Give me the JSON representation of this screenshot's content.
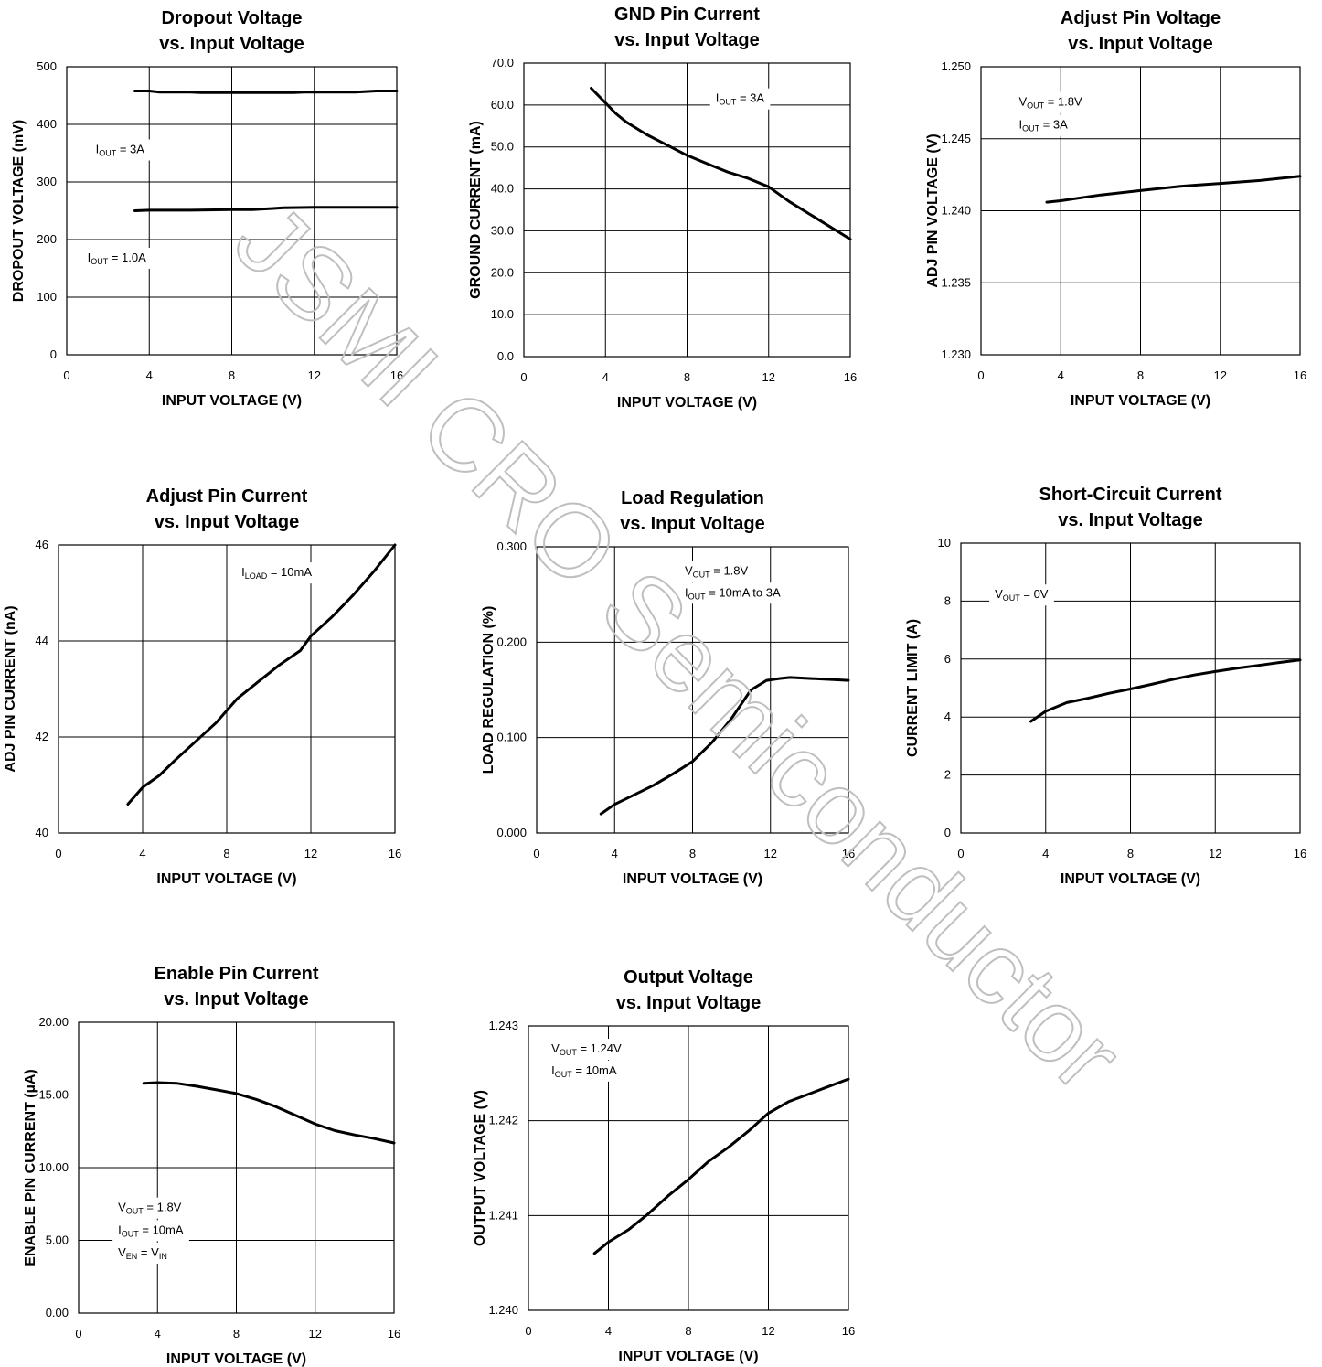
{
  "watermark": "JSMI CRO Semiconductor",
  "colors": {
    "line": "#000000",
    "grid": "#000000",
    "watermark": "#cccccc"
  },
  "chart_data": [
    {
      "type": "line",
      "title": [
        "Dropout Voltage",
        "vs. Input Voltage"
      ],
      "xlabel": "INPUT VOLTAGE (V)",
      "ylabel": "DROPOUT VOLTAGE (mV)",
      "xlim": [
        0,
        16
      ],
      "ylim": [
        0,
        500
      ],
      "xticks": [
        0,
        4,
        8,
        12,
        16
      ],
      "yticks": [
        0,
        100,
        200,
        300,
        400,
        500
      ],
      "ytick_labels": [
        "0",
        "100",
        "200",
        "300",
        "400",
        "500"
      ],
      "grid": true,
      "series": [
        {
          "x": [
            3.3,
            4,
            4.5,
            6,
            6.5,
            8,
            10,
            11,
            11.5,
            14,
            15,
            16
          ],
          "y": [
            458,
            458,
            456,
            456,
            455,
            455,
            455,
            455,
            456,
            456,
            458,
            458
          ]
        },
        {
          "x": [
            3.3,
            4,
            6,
            8,
            9,
            10,
            10.5,
            12,
            14,
            16
          ],
          "y": [
            250,
            251,
            251,
            252,
            252,
            254,
            255,
            256,
            256,
            256
          ]
        }
      ],
      "annotations": [
        {
          "main": "I",
          "sub": "OUT",
          "rest": " = 3A",
          "x": 1.4,
          "y": 350
        },
        {
          "main": "I",
          "sub": "OUT",
          "rest": " = 1.0A",
          "x": 1.0,
          "y": 162
        }
      ]
    },
    {
      "type": "line",
      "title": [
        "GND Pin Current",
        "vs. Input Voltage"
      ],
      "xlabel": "INPUT VOLTAGE (V)",
      "ylabel": "GROUND CURRENT (mA)",
      "xlim": [
        0,
        16
      ],
      "ylim": [
        0,
        70
      ],
      "xticks": [
        0,
        4,
        8,
        12,
        16
      ],
      "yticks": [
        0,
        10,
        20,
        30,
        40,
        50,
        60,
        70
      ],
      "ytick_labels": [
        "0.0",
        "10.0",
        "20.0",
        "30.0",
        "40.0",
        "50.0",
        "60.0",
        "70.0"
      ],
      "grid": true,
      "series": [
        {
          "x": [
            3.3,
            4,
            4.5,
            5,
            6,
            7,
            8,
            9,
            10,
            11,
            12,
            13,
            14,
            15,
            16
          ],
          "y": [
            64,
            60.5,
            58,
            56,
            53,
            50.5,
            48,
            46,
            44,
            42.5,
            40.5,
            37,
            34,
            31,
            28
          ]
        }
      ],
      "annotations": [
        {
          "main": "I",
          "sub": "OUT",
          "rest": " = 3A",
          "x": 9.4,
          "y": 60.7
        }
      ]
    },
    {
      "type": "line",
      "title": [
        "Adjust Pin Voltage",
        "vs. Input Voltage"
      ],
      "xlabel": "INPUT VOLTAGE (V)",
      "ylabel": "ADJ PIN VOLTAGE (V)",
      "xlim": [
        0,
        16
      ],
      "ylim": [
        1.23,
        1.25
      ],
      "xticks": [
        0,
        4,
        8,
        12,
        16
      ],
      "yticks": [
        1.23,
        1.235,
        1.24,
        1.245,
        1.25
      ],
      "ytick_labels": [
        "1.230",
        "1.235",
        "1.240",
        "1.245",
        "1.250"
      ],
      "grid": true,
      "series": [
        {
          "x": [
            3.3,
            4,
            5,
            6,
            8,
            10,
            11,
            12,
            13,
            14,
            16
          ],
          "y": [
            1.2406,
            1.2407,
            1.2409,
            1.2411,
            1.2414,
            1.2417,
            1.2418,
            1.2419,
            1.242,
            1.2421,
            1.2424
          ]
        }
      ],
      "annotations": [
        {
          "main": "V",
          "sub": "OUT",
          "rest": " = 1.8V",
          "x": 1.9,
          "y": 1.2473
        },
        {
          "main": "I",
          "sub": "OUT",
          "rest": " = 3A",
          "x": 1.9,
          "y": 1.2457
        }
      ]
    },
    {
      "type": "line",
      "title": [
        "Adjust Pin Current",
        "vs. Input Voltage"
      ],
      "xlabel": "INPUT VOLTAGE (V)",
      "ylabel": "ADJ PIN CURRENT (nA)",
      "xlim": [
        0,
        16
      ],
      "ylim": [
        40,
        46
      ],
      "xticks": [
        0,
        4,
        8,
        12,
        16
      ],
      "yticks": [
        40,
        42,
        44,
        46
      ],
      "ytick_labels": [
        "40",
        "42",
        "44",
        "46"
      ],
      "grid": true,
      "series": [
        {
          "x": [
            3.3,
            4,
            4.8,
            5.5,
            6.5,
            7.5,
            8.5,
            9.5,
            10.5,
            11.5,
            12,
            13,
            14,
            15,
            16
          ],
          "y": [
            40.6,
            40.95,
            41.2,
            41.5,
            41.9,
            42.3,
            42.8,
            43.15,
            43.5,
            43.8,
            44.1,
            44.5,
            44.95,
            45.45,
            46
          ]
        }
      ],
      "annotations": [
        {
          "main": "I",
          "sub": "LOAD",
          "rest": " = 10mA",
          "x": 8.7,
          "y": 45.35
        }
      ]
    },
    {
      "type": "line",
      "title": [
        "Load Regulation",
        "vs. Input Voltage"
      ],
      "xlabel": "INPUT VOLTAGE (V)",
      "ylabel": "LOAD REGULATION (%)",
      "xlim": [
        0,
        16
      ],
      "ylim": [
        0,
        0.3
      ],
      "xticks": [
        0,
        4,
        8,
        12,
        16
      ],
      "yticks": [
        0,
        0.1,
        0.2,
        0.3
      ],
      "ytick_labels": [
        "0.000",
        "0.100",
        "0.200",
        "0.300"
      ],
      "grid": true,
      "series": [
        {
          "x": [
            3.3,
            4,
            5,
            6,
            7,
            8,
            9,
            10,
            11,
            11.8,
            12.5,
            13,
            14,
            15,
            16
          ],
          "y": [
            0.02,
            0.03,
            0.04,
            0.05,
            0.062,
            0.075,
            0.095,
            0.12,
            0.15,
            0.16,
            0.162,
            0.163,
            0.162,
            0.161,
            0.16
          ]
        }
      ],
      "annotations": [
        {
          "main": "V",
          "sub": "OUT",
          "rest": " = 1.8V",
          "x": 7.6,
          "y": 0.271
        },
        {
          "main": "I",
          "sub": "OUT",
          "rest": " = 10mA to 3A",
          "x": 7.6,
          "y": 0.248
        }
      ]
    },
    {
      "type": "line",
      "title": [
        "Short-Circuit Current",
        "vs. Input Voltage"
      ],
      "xlabel": "INPUT VOLTAGE (V)",
      "ylabel": "CURRENT LIMIT (A)",
      "xlim": [
        0,
        16
      ],
      "ylim": [
        0,
        10
      ],
      "xticks": [
        0,
        4,
        8,
        12,
        16
      ],
      "yticks": [
        0,
        2,
        4,
        6,
        8,
        10
      ],
      "ytick_labels": [
        "0",
        "2",
        "4",
        "6",
        "8",
        "10"
      ],
      "grid": true,
      "series": [
        {
          "x": [
            3.3,
            4,
            5,
            6,
            7,
            8,
            9,
            10,
            11,
            12,
            13,
            14,
            15,
            16
          ],
          "y": [
            3.85,
            4.2,
            4.5,
            4.65,
            4.82,
            4.97,
            5.13,
            5.3,
            5.45,
            5.57,
            5.68,
            5.78,
            5.88,
            5.97
          ]
        }
      ],
      "annotations": [
        {
          "main": "V",
          "sub": "OUT",
          "rest": " = 0V",
          "x": 1.6,
          "y": 8.1
        }
      ]
    },
    {
      "type": "line",
      "title": [
        "Enable Pin Current",
        "vs. Input Voltage"
      ],
      "xlabel": "INPUT VOLTAGE (V)",
      "ylabel": "ENABLE PIN CURRENT (µA)",
      "xlim": [
        0,
        16
      ],
      "ylim": [
        0,
        20
      ],
      "xticks": [
        0,
        4,
        8,
        12,
        16
      ],
      "yticks": [
        0,
        5,
        10,
        15,
        20
      ],
      "ytick_labels": [
        "0.00",
        "5.00",
        "10.00",
        "15.00",
        "20.00"
      ],
      "grid": true,
      "series": [
        {
          "x": [
            3.3,
            4,
            5,
            6,
            7,
            8,
            9,
            10,
            11,
            12,
            13,
            14,
            15,
            16
          ],
          "y": [
            15.8,
            15.85,
            15.8,
            15.6,
            15.35,
            15.1,
            14.7,
            14.2,
            13.6,
            13.0,
            12.55,
            12.25,
            12.0,
            11.7
          ]
        }
      ],
      "annotations": [
        {
          "main": "V",
          "sub": "OUT",
          "rest": " = 1.8V",
          "x": 2.0,
          "y": 7.0
        },
        {
          "main": "I",
          "sub": "OUT",
          "rest": " = 10mA",
          "x": 2.0,
          "y": 5.45
        },
        {
          "main": "V",
          "sub": "EN",
          "rest": " = V",
          "sub2": "IN",
          "x": 2.0,
          "y": 3.9
        }
      ]
    },
    {
      "type": "line",
      "title": [
        "Output Voltage",
        "vs. Input Voltage"
      ],
      "xlabel": "INPUT VOLTAGE (V)",
      "ylabel": "OUTPUT VOLTAGE (V)",
      "xlim": [
        0,
        16
      ],
      "ylim": [
        1.24,
        1.243
      ],
      "xticks": [
        0,
        4,
        8,
        12,
        16
      ],
      "yticks": [
        1.24,
        1.241,
        1.242,
        1.243
      ],
      "ytick_labels": [
        "1.240",
        "1.241",
        "1.242",
        "1.243"
      ],
      "grid": true,
      "series": [
        {
          "x": [
            3.3,
            4,
            5,
            6,
            7,
            8,
            9,
            10,
            11,
            12,
            13,
            14,
            15,
            16
          ],
          "y": [
            1.2406,
            1.24072,
            1.24085,
            1.24102,
            1.24121,
            1.24138,
            1.24157,
            1.24172,
            1.24189,
            1.24208,
            1.2422,
            1.24228,
            1.24236,
            1.24244
          ]
        }
      ],
      "annotations": [
        {
          "main": "V",
          "sub": "OUT",
          "rest": " = 1.24V",
          "x": 1.15,
          "y": 1.24272
        },
        {
          "main": "I",
          "sub": "OUT",
          "rest": " = 10mA",
          "x": 1.15,
          "y": 1.24249
        }
      ]
    }
  ]
}
